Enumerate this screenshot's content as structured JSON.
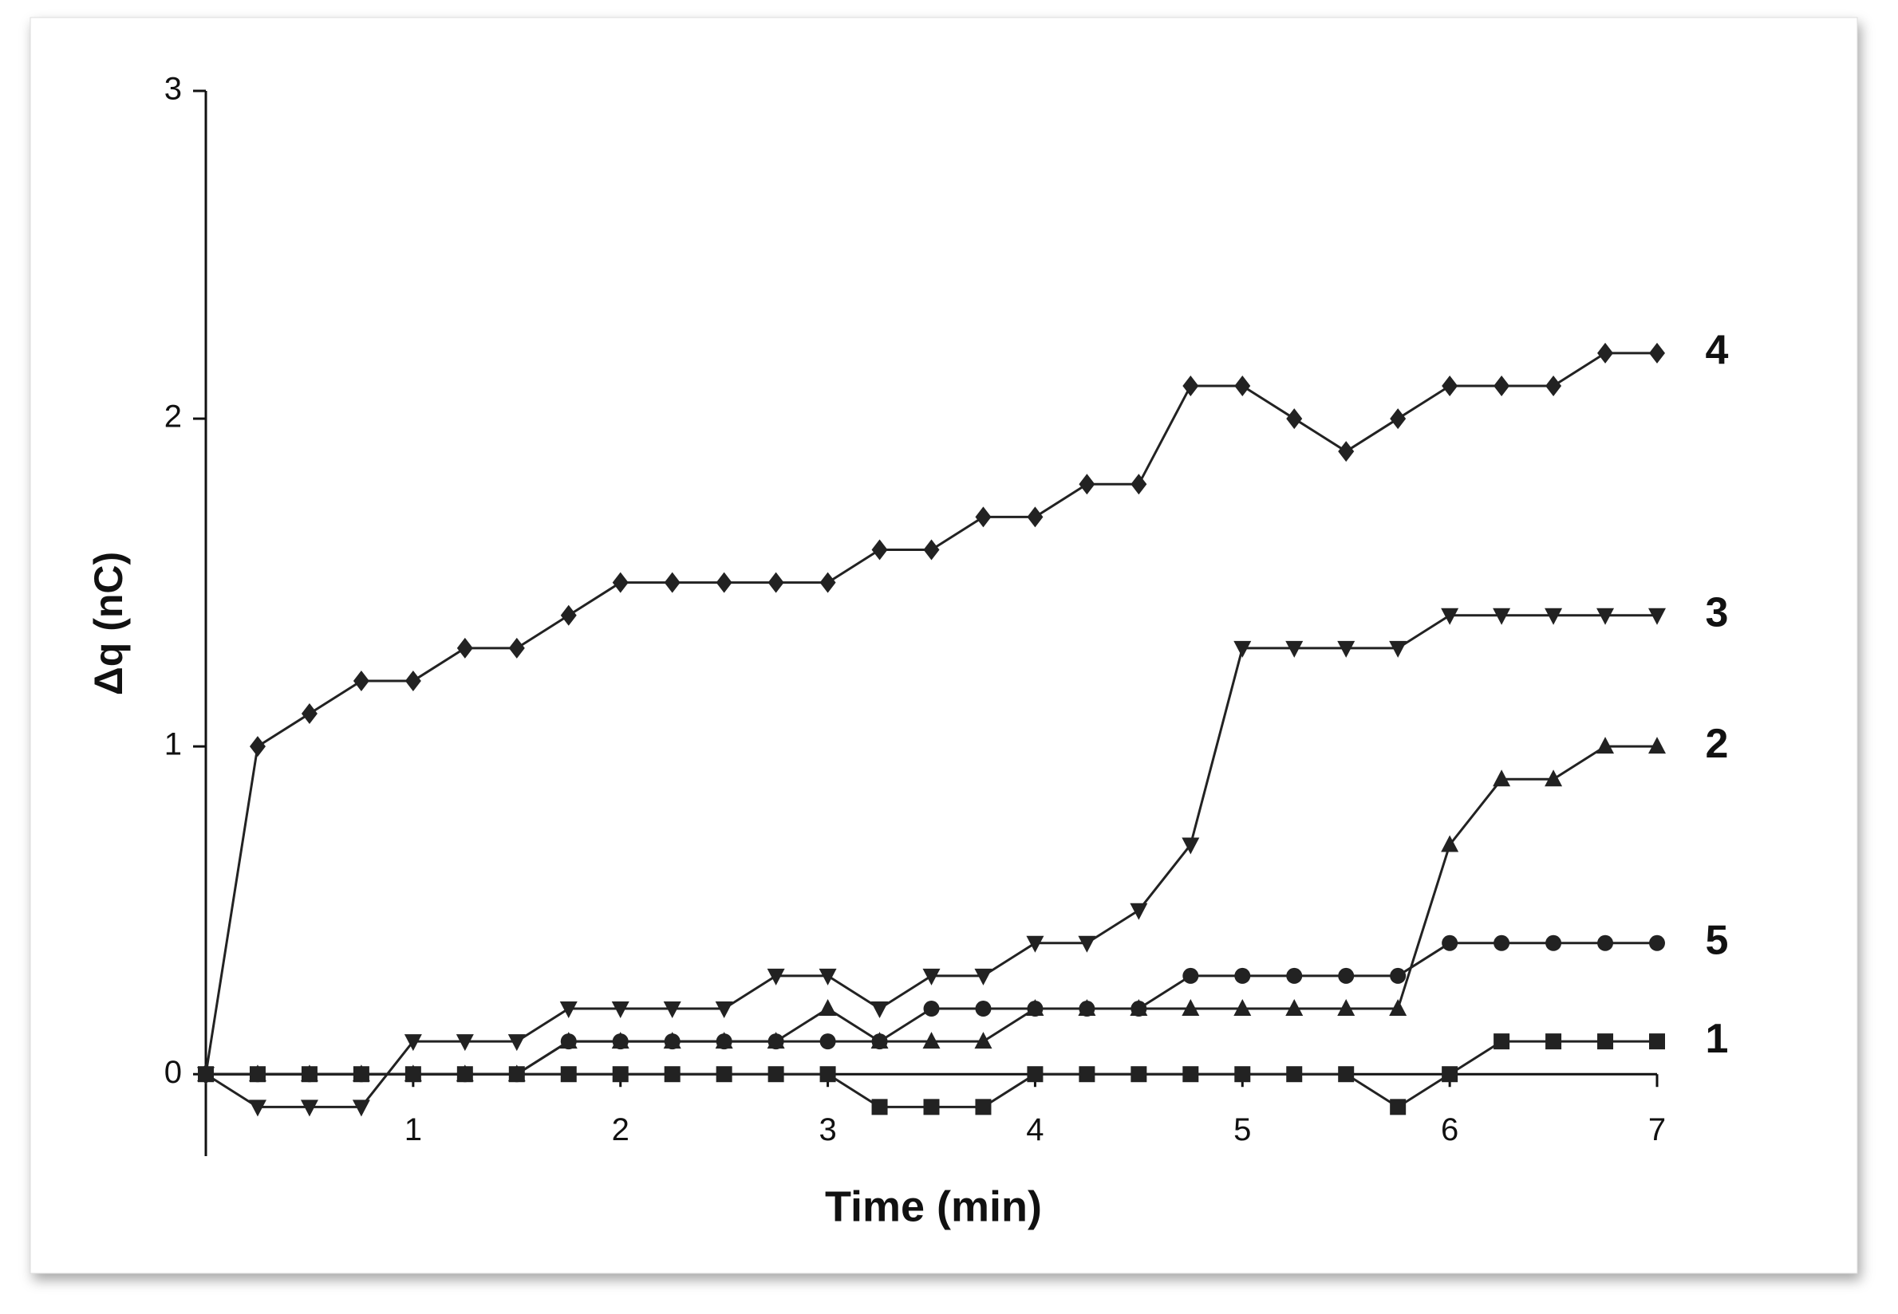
{
  "chart_data": {
    "type": "line",
    "xlabel": "Time (min)",
    "ylabel": "Δq (nC)",
    "x": [
      0,
      0.25,
      0.5,
      0.75,
      1,
      1.25,
      1.5,
      1.75,
      2,
      2.25,
      2.5,
      2.75,
      3,
      3.25,
      3.5,
      3.75,
      4,
      4.25,
      4.5,
      4.75,
      5,
      5.25,
      5.5,
      5.75,
      6,
      6.25,
      6.5,
      6.75,
      7
    ],
    "xlim": [
      0,
      7
    ],
    "xticks": [
      1,
      2,
      3,
      4,
      5,
      6,
      7
    ],
    "ylim": [
      -0.25,
      3
    ],
    "yticks": [
      0,
      1,
      2,
      3
    ],
    "series": [
      {
        "name": "1",
        "color": "#222222",
        "marker": "square",
        "values": [
          0,
          0,
          0,
          0,
          0,
          0,
          0,
          0,
          0,
          0,
          0,
          0,
          0,
          -0.1,
          -0.1,
          -0.1,
          0,
          0,
          0,
          0,
          0,
          0,
          0,
          -0.1,
          0,
          0.1,
          0.1,
          0.1,
          0.1
        ]
      },
      {
        "name": "2",
        "color": "#222222",
        "marker": "triangle-up",
        "values": [
          0,
          0,
          0,
          0,
          0,
          0,
          0,
          0.1,
          0.1,
          0.1,
          0.1,
          0.1,
          0.2,
          0.1,
          0.1,
          0.1,
          0.2,
          0.2,
          0.2,
          0.2,
          0.2,
          0.2,
          0.2,
          0.2,
          0.7,
          0.9,
          0.9,
          1.0,
          1.0
        ]
      },
      {
        "name": "3",
        "color": "#222222",
        "marker": "triangle-down",
        "values": [
          0,
          -0.1,
          -0.1,
          -0.1,
          0.1,
          0.1,
          0.1,
          0.2,
          0.2,
          0.2,
          0.2,
          0.3,
          0.3,
          0.2,
          0.3,
          0.3,
          0.4,
          0.4,
          0.5,
          0.7,
          1.3,
          1.3,
          1.3,
          1.3,
          1.4,
          1.4,
          1.4,
          1.4,
          1.4
        ]
      },
      {
        "name": "4",
        "color": "#222222",
        "marker": "diamond",
        "values": [
          0,
          1.0,
          1.1,
          1.2,
          1.2,
          1.3,
          1.3,
          1.4,
          1.5,
          1.5,
          1.5,
          1.5,
          1.5,
          1.6,
          1.6,
          1.7,
          1.7,
          1.8,
          1.8,
          2.1,
          2.1,
          2.0,
          1.9,
          2.0,
          2.1,
          2.1,
          2.1,
          2.2,
          2.2
        ]
      },
      {
        "name": "5",
        "color": "#222222",
        "marker": "circle",
        "values": [
          0,
          0,
          0,
          0,
          0,
          0,
          0,
          0.1,
          0.1,
          0.1,
          0.1,
          0.1,
          0.1,
          0.1,
          0.2,
          0.2,
          0.2,
          0.2,
          0.2,
          0.3,
          0.3,
          0.3,
          0.3,
          0.3,
          0.4,
          0.4,
          0.4,
          0.4,
          0.4
        ]
      }
    ]
  }
}
